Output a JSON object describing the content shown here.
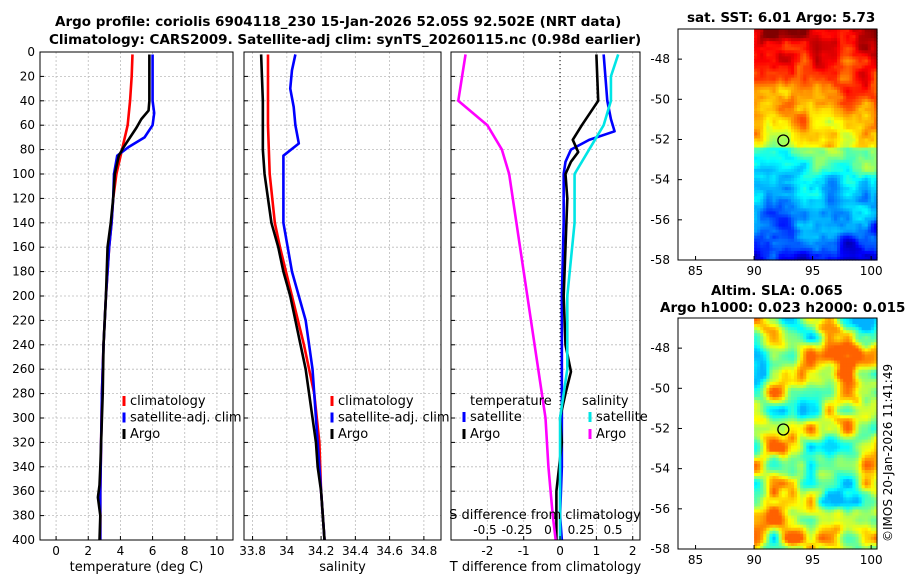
{
  "header": {
    "title_line1": "Argo profile: coriolis 6904118_230 15-Jan-2026 52.05S 92.502E (NRT data)",
    "title_line2": "Climatology: CARS2009. Satellite-adj clim: synTS_20260115.nc (0.98d earlier)"
  },
  "maps": {
    "sst_title": "sat. SST: 6.01 Argo: 5.73",
    "sla_title_line1": "Altim. SLA: 0.065",
    "sla_title_line2": "Argo h1000: 0.023 h2000: 0.015"
  },
  "credit": "©IMOS 20-Jan-2026 11:41:49",
  "colors": {
    "climatology": "#ff0000",
    "satellite": "#0000ff",
    "argo": "#000000",
    "sal_satellite": "#00e5e5",
    "sal_argo": "#ff00ff",
    "grid": "#bbbbbb"
  },
  "chart_data": [
    {
      "type": "line",
      "name": "temperature",
      "xlabel": "temperature (deg C)",
      "ylabel": "",
      "xlim": [
        -1,
        11
      ],
      "ylim": [
        400,
        0
      ],
      "xticks": [
        0,
        2,
        4,
        6,
        8,
        10
      ],
      "yticks": [
        0,
        20,
        40,
        60,
        80,
        100,
        120,
        140,
        160,
        180,
        200,
        220,
        240,
        260,
        280,
        300,
        320,
        340,
        360,
        380,
        400
      ],
      "legend": [
        "climatology",
        "satellite-adj. clim",
        "Argo"
      ],
      "legend_position": "lower-right",
      "series": [
        {
          "name": "climatology",
          "color": "#ff0000",
          "depth": [
            2,
            20,
            40,
            60,
            80,
            100,
            120,
            140,
            160,
            200,
            240,
            280,
            320,
            360,
            400
          ],
          "values": [
            4.75,
            4.7,
            4.6,
            4.45,
            4.1,
            3.75,
            3.55,
            3.45,
            3.3,
            3.1,
            2.95,
            2.85,
            2.8,
            2.75,
            2.75
          ]
        },
        {
          "name": "satellite-adj. clim",
          "color": "#0000ff",
          "depth": [
            2,
            40,
            50,
            60,
            70,
            78,
            85,
            100,
            120,
            140,
            160,
            200,
            240,
            280,
            320,
            360,
            400
          ],
          "values": [
            6.0,
            6.0,
            6.1,
            6.0,
            5.5,
            4.5,
            3.8,
            3.6,
            3.55,
            3.45,
            3.3,
            3.1,
            2.95,
            2.85,
            2.8,
            2.75,
            2.75
          ]
        },
        {
          "name": "Argo",
          "color": "#000000",
          "depth": [
            2,
            40,
            48,
            55,
            62,
            70,
            78,
            85,
            100,
            120,
            140,
            160,
            200,
            240,
            280,
            300,
            320,
            340,
            355,
            365,
            380,
            400
          ],
          "values": [
            5.8,
            5.8,
            5.75,
            5.3,
            5.0,
            4.6,
            4.2,
            3.9,
            3.65,
            3.55,
            3.4,
            3.2,
            3.1,
            2.95,
            2.9,
            2.85,
            2.8,
            2.75,
            2.7,
            2.6,
            2.75,
            2.7
          ]
        }
      ]
    },
    {
      "type": "line",
      "name": "salinity",
      "xlabel": "salinity",
      "ylabel": "",
      "xlim": [
        33.75,
        34.9
      ],
      "ylim": [
        400,
        0
      ],
      "xticks": [
        33.8,
        34,
        34.2,
        34.4,
        34.6,
        34.8
      ],
      "xticklabels": [
        "33.8",
        "34",
        "34.2",
        "34.4",
        "34.6",
        "34.8"
      ],
      "legend": [
        "climatology",
        "satellite-adj. clim",
        "Argo"
      ],
      "legend_position": "lower-right",
      "series": [
        {
          "name": "climatology",
          "color": "#ff0000",
          "depth": [
            2,
            60,
            100,
            140,
            160,
            200,
            240,
            280,
            320,
            360,
            400
          ],
          "values": [
            33.89,
            33.89,
            33.9,
            33.93,
            33.96,
            34.03,
            34.1,
            34.16,
            34.19,
            34.2,
            34.22
          ]
        },
        {
          "name": "satellite-adj. clim",
          "color": "#0000ff",
          "depth": [
            2,
            15,
            30,
            45,
            60,
            75,
            85,
            100,
            140,
            180,
            220,
            260,
            300,
            340,
            380,
            400
          ],
          "values": [
            34.05,
            34.03,
            34.02,
            34.04,
            34.05,
            34.07,
            33.98,
            33.98,
            33.98,
            34.03,
            34.11,
            34.15,
            34.17,
            34.19,
            34.21,
            34.22
          ]
        },
        {
          "name": "Argo",
          "color": "#000000",
          "depth": [
            2,
            40,
            80,
            100,
            120,
            140,
            160,
            180,
            200,
            220,
            240,
            260,
            280,
            300,
            320,
            340,
            360,
            380,
            400
          ],
          "values": [
            33.85,
            33.86,
            33.86,
            33.87,
            33.89,
            33.91,
            33.95,
            33.98,
            34.02,
            34.05,
            34.08,
            34.11,
            34.13,
            34.15,
            34.17,
            34.18,
            34.2,
            34.21,
            34.22
          ]
        }
      ]
    },
    {
      "type": "line",
      "name": "difference",
      "xlabel": "T difference from climatology",
      "xlabel_top": "S difference from climatology",
      "ylabel": "",
      "xlim": [
        -3,
        2.2
      ],
      "ylim": [
        400,
        0
      ],
      "xticks": [
        -2,
        -1,
        0,
        1,
        2
      ],
      "s_ticks": [
        "-0.5",
        "-0.25",
        "0",
        "0.25",
        "0.5"
      ],
      "legend_temperature_title": "temperature",
      "legend_salinity_title": "salinity",
      "legend_temperature": [
        "satellite",
        "Argo"
      ],
      "legend_salinity": [
        "satellite",
        "Argo"
      ],
      "legend_position": "lower-center",
      "series": [
        {
          "name": "T satellite",
          "color": "#0000ff",
          "depth": [
            2,
            40,
            55,
            65,
            72,
            80,
            90,
            100,
            140,
            200,
            260,
            300,
            340,
            380,
            400
          ],
          "values": [
            1.2,
            1.3,
            1.4,
            1.5,
            0.8,
            0.3,
            0.15,
            0.1,
            0.1,
            0.05,
            0.05,
            0.05,
            0.05,
            0.0,
            0.05
          ]
        },
        {
          "name": "T Argo",
          "color": "#000000",
          "depth": [
            2,
            40,
            60,
            72,
            82,
            90,
            100,
            120,
            160,
            200,
            240,
            262,
            280,
            300,
            320,
            360,
            400
          ],
          "values": [
            1.0,
            1.05,
            0.6,
            0.35,
            0.5,
            0.3,
            0.15,
            0.2,
            0.15,
            0.1,
            0.15,
            0.3,
            0.15,
            0.0,
            0.05,
            -0.1,
            -0.1
          ]
        },
        {
          "name": "S satellite",
          "color": "#00e5e5",
          "depth": [
            2,
            20,
            40,
            60,
            80,
            100,
            140,
            200,
            260,
            300,
            340,
            380,
            400
          ],
          "values": [
            0.4,
            0.35,
            0.35,
            0.3,
            0.2,
            0.1,
            0.1,
            0.05,
            0.05,
            0.0,
            0.0,
            0.0,
            0.0
          ]
        },
        {
          "name": "S Argo",
          "color": "#ff00ff",
          "depth": [
            2,
            40,
            60,
            80,
            100,
            140,
            180,
            220,
            260,
            300,
            340,
            380,
            400
          ],
          "values": [
            -0.65,
            -0.7,
            -0.5,
            -0.4,
            -0.35,
            -0.3,
            -0.25,
            -0.2,
            -0.15,
            -0.1,
            -0.08,
            -0.05,
            -0.03
          ]
        }
      ]
    },
    {
      "type": "heatmap",
      "name": "sst-map",
      "title": "sat. SST: 6.01 Argo: 5.73",
      "xlim": [
        83.5,
        100.5
      ],
      "ylim": [
        -58,
        -46.5
      ],
      "xticks": [
        85,
        90,
        95,
        100
      ],
      "yticks": [
        -48,
        -50,
        -52,
        -54,
        -56,
        -58
      ],
      "data_x_range": [
        90,
        100.5
      ],
      "argo_position": {
        "lon": 92.5,
        "lat": -52.05
      }
    },
    {
      "type": "heatmap",
      "name": "sla-map",
      "title": "Altim. SLA: 0.065",
      "xlim": [
        83.5,
        100.5
      ],
      "ylim": [
        -58,
        -46.5
      ],
      "xticks": [
        85,
        90,
        95,
        100
      ],
      "yticks": [
        -48,
        -50,
        -52,
        -54,
        -56,
        -58
      ],
      "data_x_range": [
        90,
        100.5
      ],
      "argo_position": {
        "lon": 92.5,
        "lat": -52.05
      }
    }
  ]
}
